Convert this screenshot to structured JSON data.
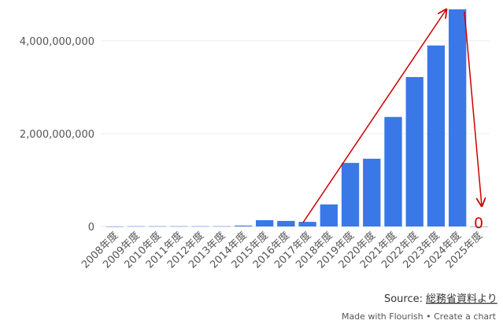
{
  "chart_data": {
    "type": "bar",
    "categories": [
      "2008年度",
      "2009年度",
      "2010年度",
      "2011年度",
      "2012年度",
      "2013年度",
      "2014年度",
      "2015年度",
      "2016年度",
      "2017年度",
      "2018年度",
      "2019年度",
      "2020年度",
      "2021年度",
      "2022年度",
      "2023年度",
      "2024年度",
      "2025年度"
    ],
    "values": [
      0,
      5000000,
      5000000,
      5000000,
      5000000,
      5000000,
      20000000,
      136000000,
      120000000,
      100000000,
      475000000,
      1370000000,
      1460000000,
      2360000000,
      3220000000,
      3900000000,
      4680000000,
      0
    ],
    "color": "#3b78e7",
    "ylim": [
      0,
      4880000000
    ],
    "yticks": [
      0,
      {
        "value": 2000000000,
        "label": "2,000,000,000"
      },
      {
        "value": 4000000000,
        "label": "4,000,000,000"
      }
    ],
    "grid": true,
    "annotation": "0",
    "source_label": "Source:",
    "source_link": "総務省資料より",
    "footer": "Made with Flourish • Create a chart"
  }
}
